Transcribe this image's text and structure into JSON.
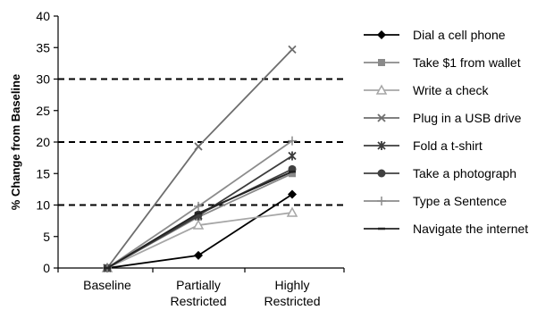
{
  "chart_data": {
    "type": "line",
    "categories": [
      "Baseline",
      "Partially Restricted",
      "Highly Restricted"
    ],
    "category_lines": [
      [
        "Baseline"
      ],
      [
        "Partially",
        "Restricted"
      ],
      [
        "Highly",
        "Restricted"
      ]
    ],
    "ylabel": "% Change from Baseline",
    "xlabel": "",
    "ylim": [
      0,
      40
    ],
    "yticks": [
      0,
      5,
      10,
      15,
      20,
      25,
      30,
      35,
      40
    ],
    "reference_lines": [
      10,
      20,
      30
    ],
    "legend_position": "right",
    "series": [
      {
        "name": "Dial a cell phone",
        "values": [
          0,
          2.0,
          11.7
        ],
        "color": "#000000",
        "marker": "diamond"
      },
      {
        "name": "Take $1 from wallet",
        "values": [
          0,
          8.1,
          15.0
        ],
        "color": "#8a8a8a",
        "marker": "square"
      },
      {
        "name": "Write a check",
        "values": [
          0,
          6.8,
          8.8
        ],
        "color": "#a6a6a6",
        "marker": "triangle"
      },
      {
        "name": "Plug in a USB drive",
        "values": [
          0,
          19.3,
          34.7
        ],
        "color": "#6e6e6e",
        "marker": "x"
      },
      {
        "name": "Fold a t-shirt",
        "values": [
          0,
          8.3,
          17.8
        ],
        "color": "#3c3c3c",
        "marker": "asterisk"
      },
      {
        "name": "Take a photograph",
        "values": [
          0,
          8.5,
          15.7
        ],
        "color": "#404040",
        "marker": "circle"
      },
      {
        "name": "Type a Sentence",
        "values": [
          0,
          9.8,
          20.2
        ],
        "color": "#8c8c8c",
        "marker": "plus"
      },
      {
        "name": "Navigate the internet",
        "values": [
          0,
          8.7,
          15.3
        ],
        "color": "#222222",
        "marker": "dash"
      }
    ]
  }
}
